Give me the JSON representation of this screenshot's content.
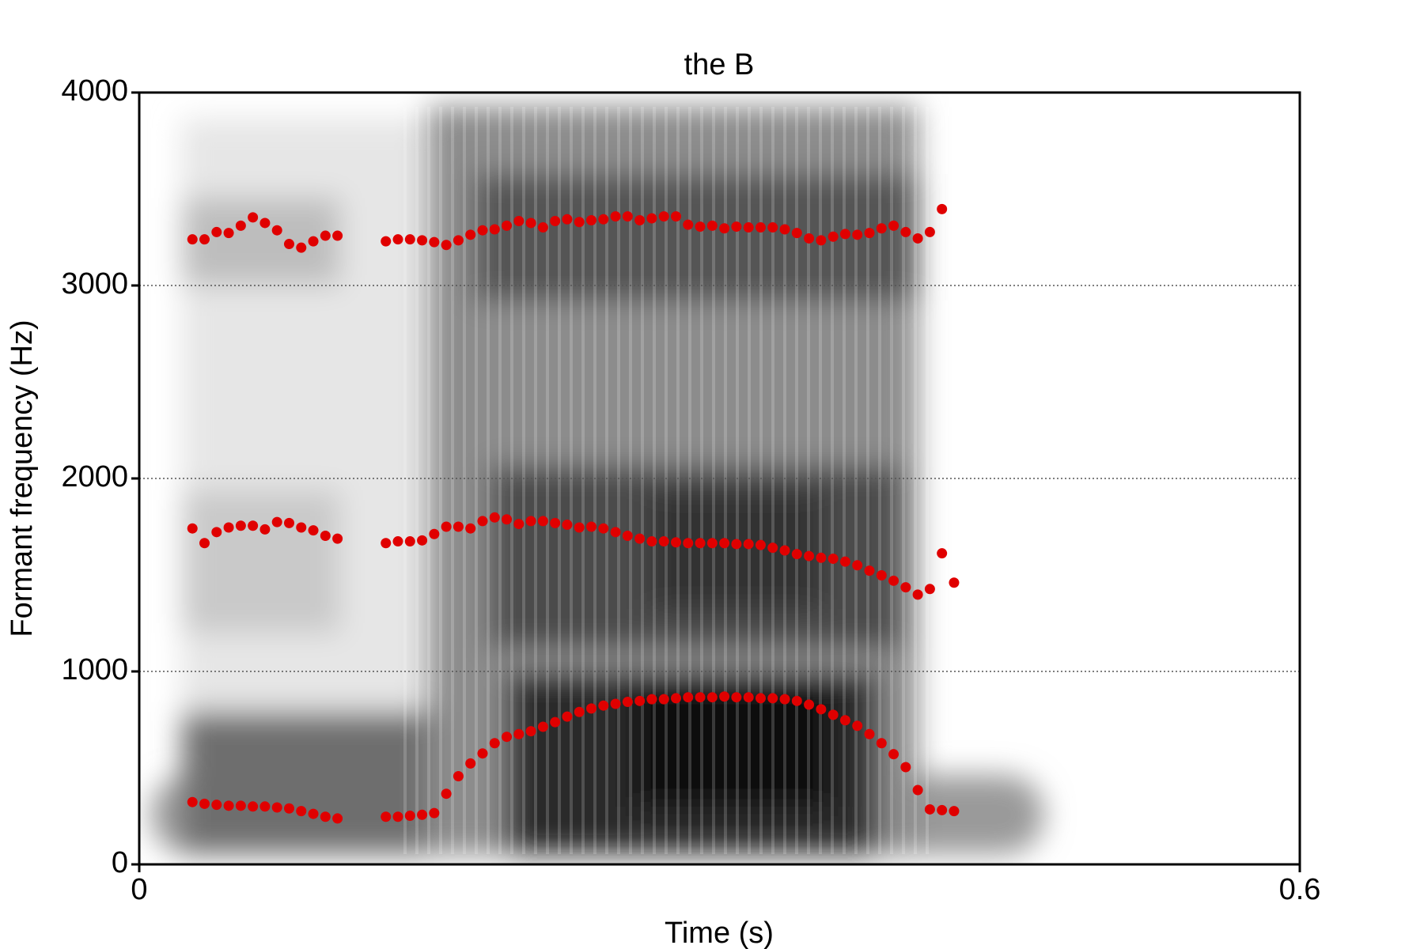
{
  "chart_data": {
    "type": "scatter",
    "title": "the B",
    "x_label": "Time (s)",
    "y_label": "Formant frequency (Hz)",
    "xlim": [
      0,
      0.6
    ],
    "xticks": [
      0,
      0.6
    ],
    "ylim": [
      0,
      4000
    ],
    "yticks": [
      0,
      1000,
      2000,
      3000,
      4000
    ],
    "grid": true,
    "x": [
      0.0275,
      0.03375,
      0.04,
      0.04625,
      0.0525,
      0.05875,
      0.065,
      0.07125,
      0.0775,
      0.08375,
      0.09,
      0.09625,
      0.1025,
      0.1275,
      0.13375,
      0.14,
      0.14625,
      0.1525,
      0.15875,
      0.165,
      0.17125,
      0.1775,
      0.18375,
      0.19,
      0.19625,
      0.2025,
      0.20875,
      0.215,
      0.22125,
      0.2275,
      0.23375,
      0.24,
      0.24625,
      0.2525,
      0.25875,
      0.265,
      0.27125,
      0.2775,
      0.28375,
      0.29,
      0.29625,
      0.3025,
      0.30875,
      0.315,
      0.32125,
      0.3275,
      0.33375,
      0.34,
      0.34625,
      0.3525,
      0.35875,
      0.365,
      0.37125,
      0.3775,
      0.38375,
      0.39,
      0.39625,
      0.4025,
      0.40875,
      0.415,
      0.42125
    ],
    "series": [
      {
        "color": "#e00000",
        "values": [
          323,
          314,
          309,
          304,
          304,
          300,
          300,
          295,
          290,
          276,
          262,
          247,
          238,
          247,
          247,
          252,
          257,
          266,
          366,
          457,
          523,
          575,
          628,
          661,
          675,
          690,
          713,
          737,
          766,
          790,
          808,
          823,
          832,
          842,
          847,
          856,
          856,
          861,
          866,
          866,
          866,
          870,
          866,
          866,
          861,
          861,
          856,
          847,
          828,
          804,
          775,
          747,
          718,
          675,
          628,
          571,
          504,
          385,
          285,
          281,
          276
        ]
      },
      {
        "color": "#e00000",
        "values": [
          1741,
          1665,
          1722,
          1746,
          1755,
          1755,
          1736,
          1774,
          1769,
          1746,
          1731,
          1703,
          1688,
          1665,
          1674,
          1674,
          1679,
          1712,
          1750,
          1750,
          1741,
          1779,
          1798,
          1788,
          1764,
          1779,
          1779,
          1769,
          1760,
          1746,
          1750,
          1741,
          1722,
          1703,
          1688,
          1674,
          1674,
          1669,
          1665,
          1665,
          1665,
          1665,
          1660,
          1660,
          1655,
          1641,
          1627,
          1608,
          1598,
          1589,
          1584,
          1569,
          1550,
          1522,
          1498,
          1470,
          1436,
          1398,
          1427,
          1612,
          1460
        ]
      },
      {
        "color": "#e00000",
        "values": [
          3239,
          3239,
          3277,
          3272,
          3310,
          3353,
          3324,
          3286,
          3215,
          3196,
          3229,
          3258,
          3258,
          3229,
          3239,
          3239,
          3234,
          3225,
          3210,
          3234,
          3263,
          3286,
          3291,
          3310,
          3334,
          3324,
          3301,
          3334,
          3343,
          3329,
          3338,
          3343,
          3358,
          3358,
          3338,
          3348,
          3358,
          3358,
          3315,
          3305,
          3310,
          3296,
          3305,
          3301,
          3301,
          3301,
          3291,
          3272,
          3244,
          3234,
          3253,
          3267,
          3263,
          3272,
          3296,
          3310,
          3277,
          3244,
          3277,
          3396,
          null
        ]
      }
    ]
  }
}
